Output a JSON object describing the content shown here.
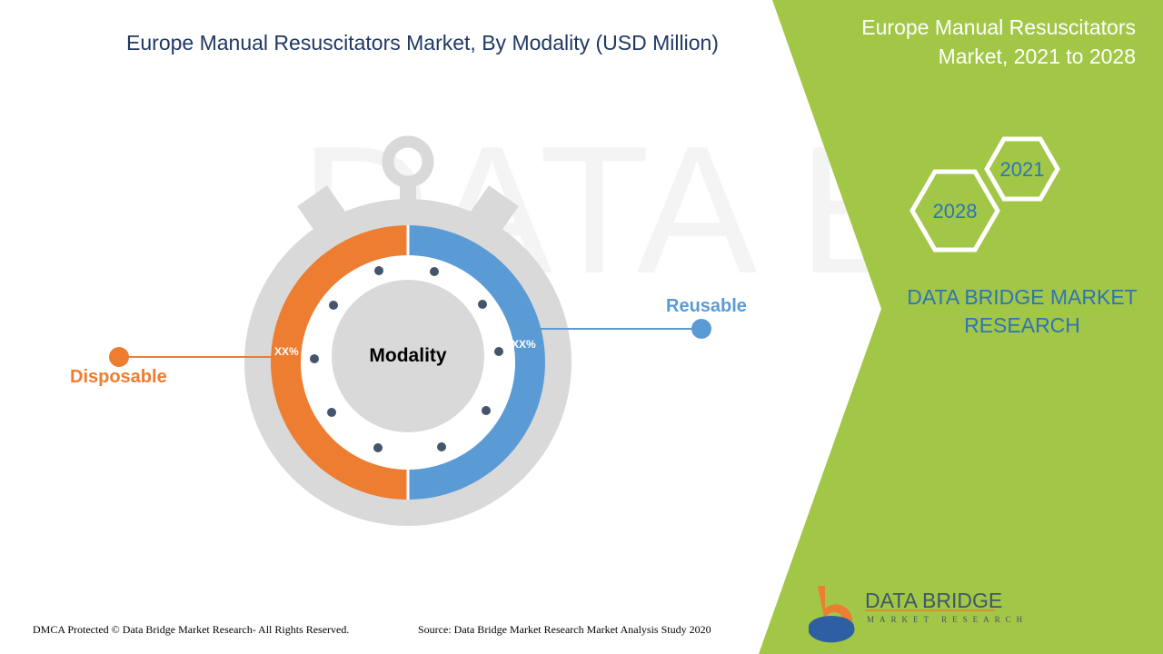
{
  "title": "Europe Manual Resuscitators Market, By Modality (USD Million)",
  "side_panel": {
    "title_line1": "Europe Manual Resuscitators",
    "title_line2": "Market, 2021 to 2028",
    "year_a": "2021",
    "year_b": "2028",
    "brand_line1": "DATA BRIDGE MARKET",
    "brand_line2": "RESEARCH"
  },
  "diagram": {
    "center_label": "Modality",
    "segments": [
      {
        "label": "Reusable",
        "value_label": "XX%",
        "color": "#5b9bd5"
      },
      {
        "label": "Disposable",
        "value_label": "XX%",
        "color": "#ed7d31"
      }
    ]
  },
  "logo": {
    "line1": "DATA BRIDGE",
    "line2": "MARKET RESEARCH"
  },
  "footer": {
    "copyright": "DMCA Protected © Data Bridge Market Research- All Rights Reserved.",
    "source": "Source: Data Bridge Market Research Market Analysis Study 2020"
  },
  "colors": {
    "green": "#a2c646",
    "navy": "#1f3864",
    "blue": "#5b9bd5",
    "orange": "#ed7d31",
    "gray": "#d9d9d9"
  }
}
